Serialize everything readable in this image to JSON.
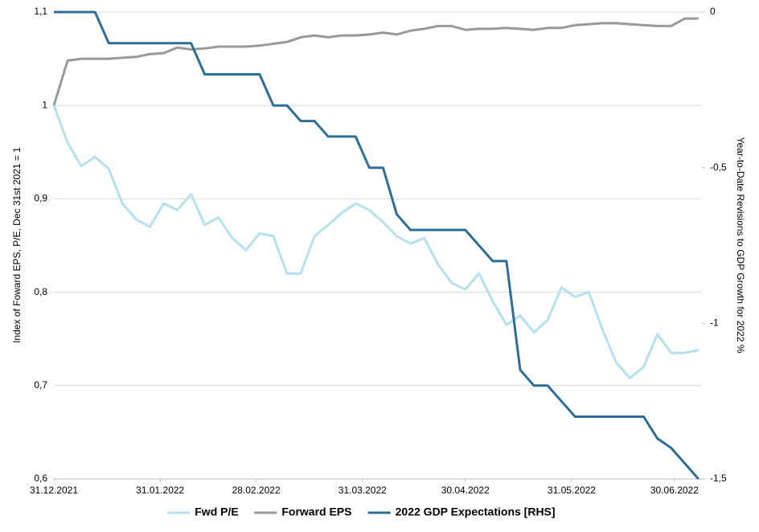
{
  "chart_data": {
    "type": "line",
    "x": [
      "2021-12-31",
      "2022-01-04",
      "2022-01-08",
      "2022-01-12",
      "2022-01-16",
      "2022-01-20",
      "2022-01-24",
      "2022-01-28",
      "2022-02-01",
      "2022-02-05",
      "2022-02-09",
      "2022-02-13",
      "2022-02-17",
      "2022-02-21",
      "2022-02-25",
      "2022-03-01",
      "2022-03-05",
      "2022-03-09",
      "2022-03-13",
      "2022-03-17",
      "2022-03-21",
      "2022-03-25",
      "2022-03-29",
      "2022-04-02",
      "2022-04-06",
      "2022-04-10",
      "2022-04-14",
      "2022-04-18",
      "2022-04-22",
      "2022-04-26",
      "2022-04-30",
      "2022-05-04",
      "2022-05-08",
      "2022-05-12",
      "2022-05-16",
      "2022-05-20",
      "2022-05-24",
      "2022-05-28",
      "2022-06-01",
      "2022-06-05",
      "2022-06-09",
      "2022-06-13",
      "2022-06-17",
      "2022-06-21",
      "2022-06-25",
      "2022-06-29",
      "2022-07-03",
      "2022-07-07"
    ],
    "series": [
      {
        "name": "Fwd P/E",
        "color": "#b4e0f0",
        "values": [
          1.0,
          0.96,
          0.935,
          0.945,
          0.932,
          0.895,
          0.878,
          0.87,
          0.895,
          0.888,
          0.905,
          0.872,
          0.88,
          0.858,
          0.845,
          0.863,
          0.86,
          0.82,
          0.82,
          0.86,
          0.872,
          0.885,
          0.895,
          0.888,
          0.875,
          0.86,
          0.852,
          0.858,
          0.83,
          0.81,
          0.803,
          0.82,
          0.79,
          0.765,
          0.775,
          0.757,
          0.77,
          0.805,
          0.795,
          0.8,
          0.76,
          0.725,
          0.708,
          0.72,
          0.755,
          0.735,
          0.735,
          0.738
        ]
      },
      {
        "name": "Forward EPS",
        "color": "#999999",
        "values": [
          1.0,
          1.048,
          1.05,
          1.05,
          1.05,
          1.051,
          1.052,
          1.055,
          1.056,
          1.062,
          1.06,
          1.061,
          1.063,
          1.063,
          1.063,
          1.064,
          1.066,
          1.068,
          1.073,
          1.075,
          1.073,
          1.075,
          1.075,
          1.076,
          1.078,
          1.076,
          1.08,
          1.082,
          1.085,
          1.085,
          1.081,
          1.082,
          1.082,
          1.083,
          1.082,
          1.081,
          1.083,
          1.083,
          1.086,
          1.087,
          1.088,
          1.088,
          1.087,
          1.086,
          1.085,
          1.085,
          1.093,
          1.093
        ]
      },
      {
        "name": "2022 GDP Expectations [RHS]",
        "color": "#2e6e96",
        "axis": "y2",
        "values": [
          0,
          0,
          0,
          0,
          -0.1,
          -0.1,
          -0.1,
          -0.1,
          -0.1,
          -0.1,
          -0.1,
          -0.2,
          -0.2,
          -0.2,
          -0.2,
          -0.2,
          -0.3,
          -0.3,
          -0.35,
          -0.35,
          -0.4,
          -0.4,
          -0.4,
          -0.5,
          -0.5,
          -0.65,
          -0.7,
          -0.7,
          -0.7,
          -0.7,
          -0.7,
          -0.75,
          -0.8,
          -0.8,
          -1.15,
          -1.2,
          -1.2,
          -1.25,
          -1.3,
          -1.3,
          -1.3,
          -1.3,
          -1.3,
          -1.3,
          -1.37,
          -1.4,
          -1.45,
          -1.5
        ]
      }
    ],
    "ylabel": "Index of Foward EPS, P/E, Dec 31st 2021 = 1",
    "y2label": "Year-to-Date Revisions to GDP Growth for 2022  %",
    "xlim": [
      "2021-12-31",
      "2022-07-08"
    ],
    "xticks": [
      {
        "value": "2021-12-31",
        "label": "31.12.2021"
      },
      {
        "value": "2022-01-31",
        "label": "31.01.2022"
      },
      {
        "value": "2022-02-28",
        "label": "28.02.2022"
      },
      {
        "value": "2022-03-31",
        "label": "31.03.2022"
      },
      {
        "value": "2022-04-30",
        "label": "30.04.2022"
      },
      {
        "value": "2022-05-31",
        "label": "31.05.2022"
      },
      {
        "value": "2022-06-30",
        "label": "30.06.2022"
      }
    ],
    "ylim": [
      0.6,
      1.1
    ],
    "yticks": [
      {
        "value": 0.6,
        "label": "0,6"
      },
      {
        "value": 0.7,
        "label": "0,7"
      },
      {
        "value": 0.8,
        "label": "0,8"
      },
      {
        "value": 0.9,
        "label": "0,9"
      },
      1,
      {
        "value": 1.1,
        "label": "1,1"
      }
    ],
    "y2lim": [
      -1.5,
      0
    ],
    "y2ticks": [
      {
        "value": -1.5,
        "label": "-1,5"
      },
      -1,
      {
        "value": -0.5,
        "label": "-0,5"
      },
      0
    ],
    "grid": true,
    "legend": "bottom"
  }
}
